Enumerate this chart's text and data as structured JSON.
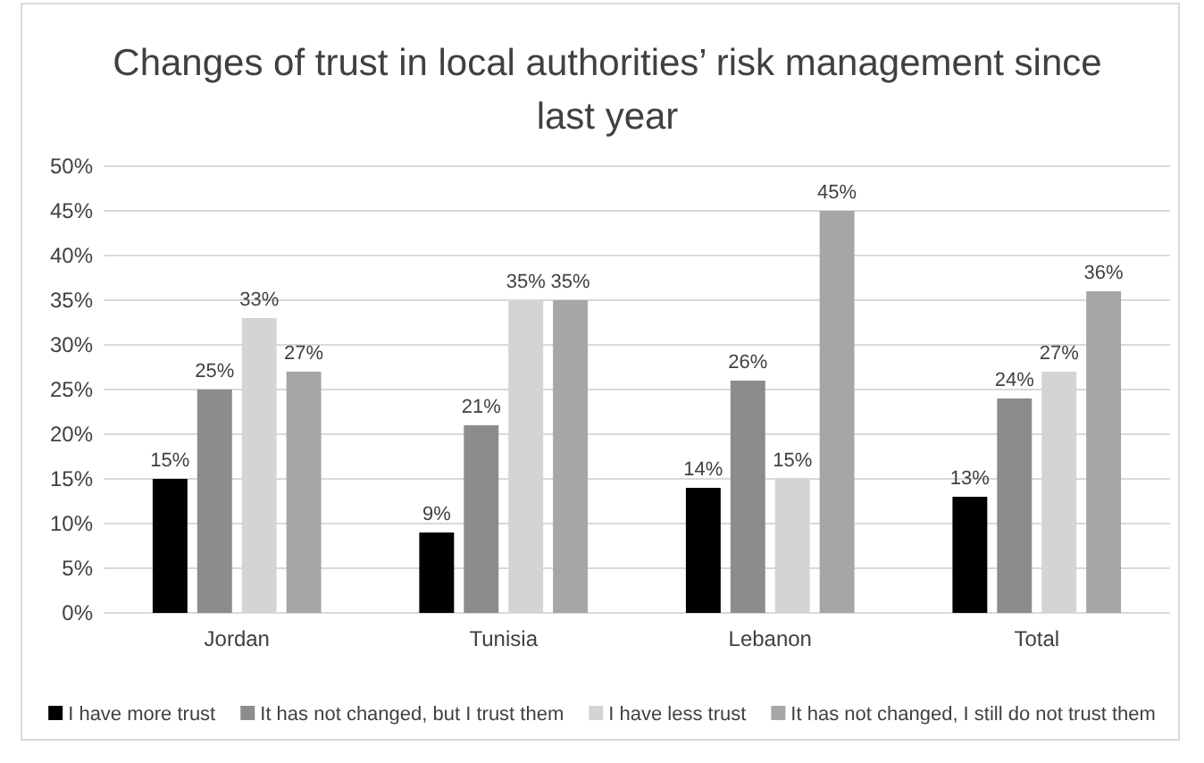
{
  "chart_data": {
    "type": "bar",
    "title": "Changes of trust in local authorities’ risk management since last year",
    "categories": [
      "Jordan",
      "Tunisia",
      "Lebanon",
      "Total"
    ],
    "series": [
      {
        "name": "I have more trust",
        "color": "#000000",
        "values": [
          15,
          9,
          14,
          13
        ],
        "value_labels": [
          "15%",
          "9%",
          "14%",
          "13%"
        ]
      },
      {
        "name": "It has not changed, but I trust them",
        "color": "#8c8c8c",
        "values": [
          25,
          21,
          26,
          24
        ],
        "value_labels": [
          "25%",
          "21%",
          "26%",
          "24%"
        ]
      },
      {
        "name": "I have less trust",
        "color": "#d4d4d4",
        "values": [
          33,
          35,
          15,
          27
        ],
        "value_labels": [
          "33%",
          "35%",
          "15%",
          "27%"
        ]
      },
      {
        "name": "It has not changed, I still do not trust them",
        "color": "#a6a6a6",
        "values": [
          27,
          35,
          45,
          36
        ],
        "value_labels": [
          "27%",
          "35%",
          "45%",
          "36%"
        ]
      }
    ],
    "ylim": [
      0,
      50
    ],
    "yticks": [
      {
        "value": 0,
        "label": "0%"
      },
      {
        "value": 5,
        "label": "5%"
      },
      {
        "value": 10,
        "label": "10%"
      },
      {
        "value": 15,
        "label": "15%"
      },
      {
        "value": 20,
        "label": "20%"
      },
      {
        "value": 25,
        "label": "25%"
      },
      {
        "value": 30,
        "label": "30%"
      },
      {
        "value": 35,
        "label": "35%"
      },
      {
        "value": 40,
        "label": "40%"
      },
      {
        "value": 45,
        "label": "45%"
      },
      {
        "value": 50,
        "label": "50%"
      }
    ],
    "grid": "y",
    "legend": "bottom"
  }
}
